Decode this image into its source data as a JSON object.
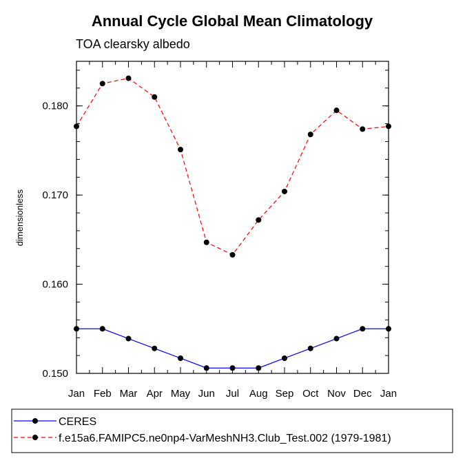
{
  "chart_data": {
    "type": "line",
    "title": "Annual Cycle Global Mean Climatology",
    "subtitle": "TOA clearsky albedo",
    "xlabel": "",
    "ylabel": "dimensionless",
    "categories": [
      "Jan",
      "Feb",
      "Mar",
      "Apr",
      "May",
      "Jun",
      "Jul",
      "Aug",
      "Sep",
      "Oct",
      "Nov",
      "Dec",
      "Jan"
    ],
    "ylim": [
      0.15,
      0.185
    ],
    "yticks": [
      0.15,
      0.16,
      0.17,
      0.18
    ],
    "ytick_labels": [
      "0.150",
      "0.160",
      "0.170",
      "0.180"
    ],
    "grid": false,
    "legend_position": "bottom",
    "series": [
      {
        "name": "CERES",
        "color": "#0000ff",
        "line_style": "solid",
        "values": [
          0.155,
          0.155,
          0.1539,
          0.1528,
          0.1517,
          0.1506,
          0.1506,
          0.1506,
          0.1517,
          0.1528,
          0.1539,
          0.155,
          0.155
        ]
      },
      {
        "name": "f.e15a6.FAMIPC5.ne0np4-VarMeshNH3.Club_Test.002 (1979-1981)",
        "color": "#ff0000",
        "line_style": "dashed",
        "values": [
          0.1777,
          0.1825,
          0.1831,
          0.181,
          0.1751,
          0.1647,
          0.1633,
          0.1672,
          0.1704,
          0.1768,
          0.1795,
          0.1774,
          0.1777
        ]
      }
    ]
  }
}
